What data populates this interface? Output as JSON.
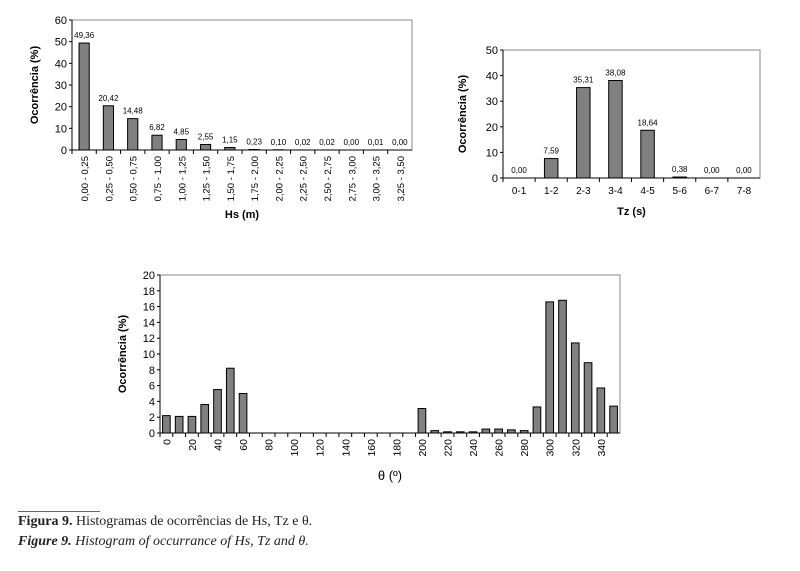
{
  "chart_data": [
    {
      "type": "bar",
      "id": "hs",
      "title": "",
      "xlabel": "Hs (m)",
      "ylabel": "Ocorrência (%)",
      "ylim": [
        0,
        60
      ],
      "yticks": [
        0,
        10,
        20,
        30,
        40,
        50,
        60
      ],
      "grid": false,
      "categories": [
        "0,00 - 0,25",
        "0,25 - 0,50",
        "0,50 - 0,75",
        "0,75 - 1,00",
        "1,00 - 1,25",
        "1,25 - 1,50",
        "1,50 - 1,75",
        "1,75 - 2,00",
        "2,00 - 2,25",
        "2,25 - 2,50",
        "2,50 - 2,75",
        "2,75 - 3,00",
        "3,00 - 3,25",
        "3,25 - 3,50"
      ],
      "values": [
        49.36,
        20.42,
        14.48,
        6.82,
        4.85,
        2.55,
        1.15,
        0.23,
        0.1,
        0.02,
        0.02,
        0.0,
        0.01,
        0.0
      ],
      "labels": [
        "49,36",
        "20,42",
        "14,48",
        "6,82",
        "4,85",
        "2,55",
        "1,15",
        "0,23",
        "0,10",
        "0,02",
        "0,02",
        "0,00",
        "0,01",
        "0,00"
      ]
    },
    {
      "type": "bar",
      "id": "tz",
      "title": "",
      "xlabel": "Tz (s)",
      "ylabel": "Ocorrência (%)",
      "ylim": [
        0,
        50
      ],
      "yticks": [
        0,
        10,
        20,
        30,
        40,
        50
      ],
      "grid": false,
      "categories": [
        "0-1",
        "1-2",
        "2-3",
        "3-4",
        "4-5",
        "5-6",
        "6-7",
        "7-8"
      ],
      "values": [
        0.0,
        7.59,
        35.31,
        38.08,
        18.64,
        0.38,
        0.0,
        0.0
      ],
      "labels": [
        "0,00",
        "7,59",
        "35,31",
        "38,08",
        "18,64",
        "0,38",
        "0,00",
        "0,00"
      ]
    },
    {
      "type": "bar",
      "id": "theta",
      "title": "",
      "xlabel": "θ (º)",
      "ylabel": "Ocorrência (%)",
      "ylim": [
        0,
        20
      ],
      "yticks": [
        0,
        2,
        4,
        6,
        8,
        10,
        12,
        14,
        16,
        18,
        20
      ],
      "grid": false,
      "categories": [
        "0",
        "10",
        "20",
        "30",
        "40",
        "50",
        "60",
        "70",
        "80",
        "90",
        "100",
        "110",
        "120",
        "130",
        "140",
        "150",
        "160",
        "170",
        "180",
        "190",
        "200",
        "210",
        "220",
        "230",
        "240",
        "250",
        "260",
        "270",
        "280",
        "290",
        "300",
        "310",
        "320",
        "330",
        "340",
        "350"
      ],
      "tick_labels": [
        "0",
        "20",
        "40",
        "60",
        "80",
        "100",
        "120",
        "140",
        "160",
        "180",
        "200",
        "220",
        "240",
        "260",
        "280",
        "300",
        "320",
        "340"
      ],
      "values": [
        2.2,
        2.1,
        2.1,
        3.6,
        5.5,
        8.2,
        5.0,
        0,
        0,
        0,
        0,
        0,
        0,
        0,
        0,
        0,
        0,
        0,
        0,
        0,
        3.1,
        0.3,
        0.15,
        0.15,
        0.15,
        0.5,
        0.5,
        0.4,
        0.3,
        3.3,
        16.6,
        16.8,
        11.4,
        8.9,
        5.7,
        3.4
      ]
    }
  ],
  "caption": {
    "pt_label": "Figura 9.",
    "pt_text": " Histogramas de ocorrências de Hs, Tz e θ.",
    "en_label": "Figure 9.",
    "en_text": " Histogram of occurrance of Hs, Tz and θ."
  },
  "colors": {
    "bar": "#808080",
    "axis": "#888888"
  }
}
